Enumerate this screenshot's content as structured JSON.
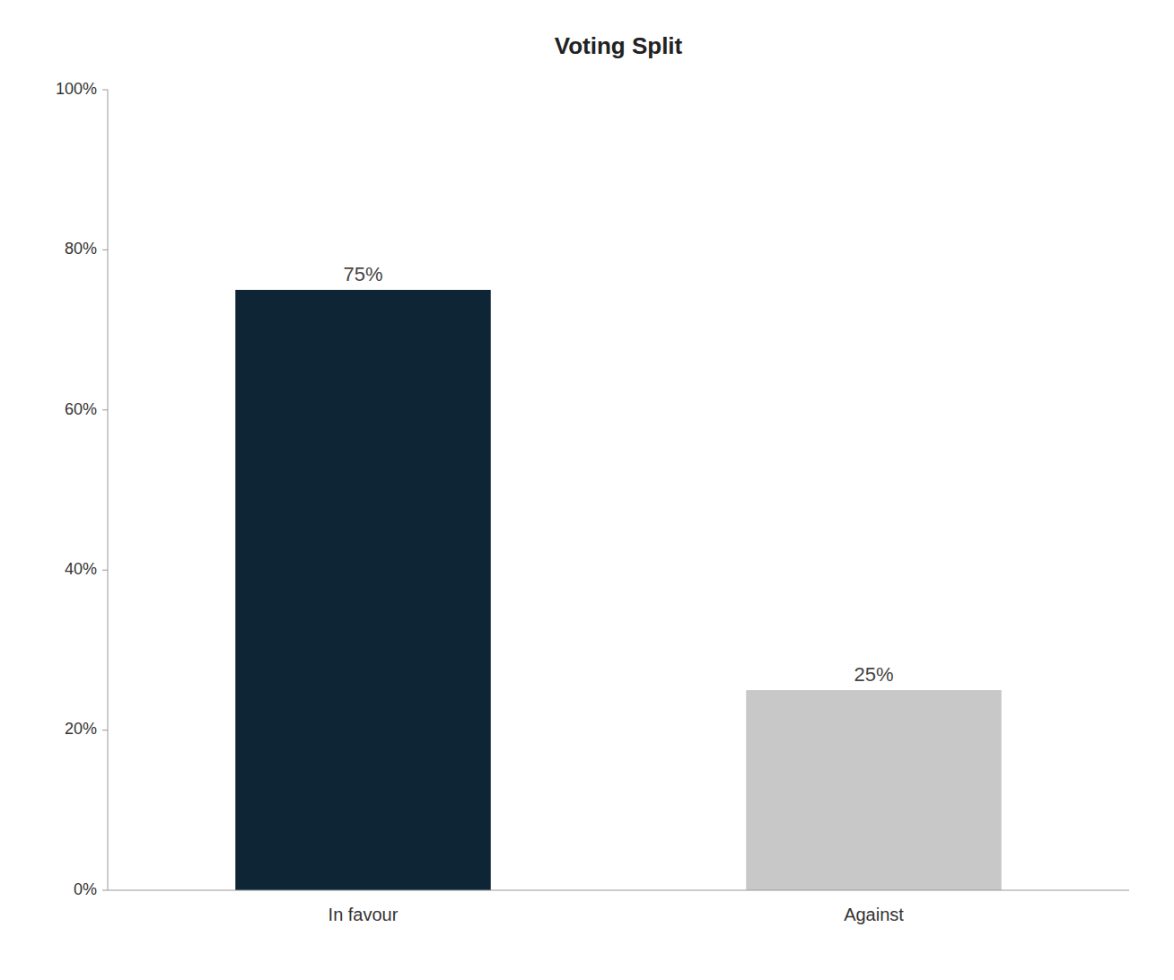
{
  "chart_data": {
    "type": "bar",
    "title": "Voting Split",
    "categories": [
      "In favour",
      "Against"
    ],
    "values": [
      75,
      25
    ],
    "value_labels": [
      "75%",
      "25%"
    ],
    "colors": [
      "#0d2535",
      "#c8c8c8"
    ],
    "ylim": [
      0,
      100
    ],
    "yticks": [
      {
        "value": 0,
        "label": "0%"
      },
      {
        "value": 20,
        "label": "20%"
      },
      {
        "value": 40,
        "label": "40%"
      },
      {
        "value": 60,
        "label": "60%"
      },
      {
        "value": 80,
        "label": "80%"
      },
      {
        "value": 100,
        "label": "100%"
      }
    ],
    "data_labels": true,
    "grid": false
  }
}
